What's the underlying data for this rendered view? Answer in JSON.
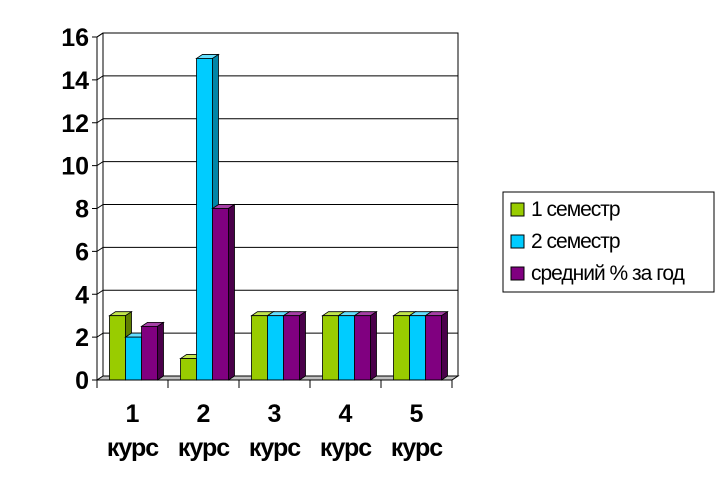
{
  "chart_data": {
    "type": "bar",
    "categories": [
      [
        "1",
        "курс"
      ],
      [
        "2",
        "курс"
      ],
      [
        "3",
        "курс"
      ],
      [
        "4",
        "курс"
      ],
      [
        "5",
        "курс"
      ]
    ],
    "series": [
      {
        "name": "1 семестр",
        "values": [
          3,
          1,
          3,
          3,
          3
        ],
        "color": "#99CC00",
        "dark": "#5f7f00",
        "light": "#c2e64d"
      },
      {
        "name": "2 семестр",
        "values": [
          2,
          15,
          3,
          3,
          3
        ],
        "color": "#00CCFF",
        "dark": "#0086a8",
        "light": "#66e0ff"
      },
      {
        "name": "средний % за год",
        "values": [
          2.5,
          8,
          3,
          3,
          3
        ],
        "color": "#800080",
        "dark": "#4a004a",
        "light": "#a640a6"
      }
    ],
    "ylim": [
      0,
      16
    ],
    "yticks": [
      0,
      2,
      4,
      6,
      8,
      10,
      12,
      14,
      16
    ],
    "grid": true,
    "legend": "right",
    "style": "3d-clustered-bar"
  }
}
